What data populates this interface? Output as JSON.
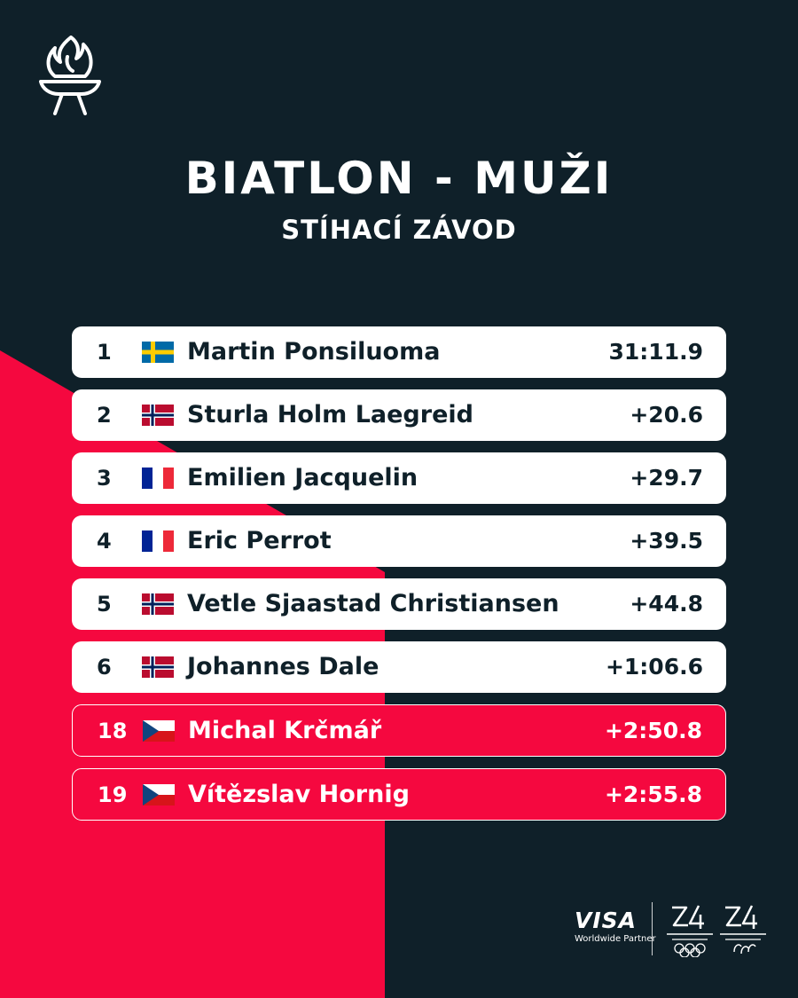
{
  "header": {
    "torch_icon": "torch-icon",
    "title": "BIATLON - MUŽI",
    "subtitle": "STÍHACÍ ZÁVOD"
  },
  "colors": {
    "background": "#0f2029",
    "accent": "#f5083f",
    "row": "#ffffff",
    "text_dark": "#0f2029"
  },
  "results": [
    {
      "rank": "1",
      "flag": "SWE",
      "name": "Martin Ponsiluoma",
      "time": "31:11.9",
      "highlight": false
    },
    {
      "rank": "2",
      "flag": "NOR",
      "name": "Sturla Holm Laegreid",
      "time": "+20.6",
      "highlight": false
    },
    {
      "rank": "3",
      "flag": "FRA",
      "name": "Emilien Jacquelin",
      "time": "+29.7",
      "highlight": false
    },
    {
      "rank": "4",
      "flag": "FRA",
      "name": "Eric Perrot",
      "time": "+39.5",
      "highlight": false
    },
    {
      "rank": "5",
      "flag": "NOR",
      "name": "Vetle Sjaastad Christiansen",
      "time": "+44.8",
      "highlight": false
    },
    {
      "rank": "6",
      "flag": "NOR",
      "name": "Johannes Dale",
      "time": "+1:06.6",
      "highlight": false
    },
    {
      "rank": "18",
      "flag": "CZE",
      "name": "Michal Krčmář",
      "time": "+2:50.8",
      "highlight": true
    },
    {
      "rank": "19",
      "flag": "CZE",
      "name": "Vítězslav Hornig",
      "time": "+2:55.8",
      "highlight": true
    }
  ],
  "sponsors": {
    "visa": "VISA",
    "visa_tagline": "Worldwide Partner",
    "olympic_logo": "milano-cortina-2026-olympic-logo",
    "paralympic_logo": "milano-cortina-2026-paralympic-logo"
  }
}
